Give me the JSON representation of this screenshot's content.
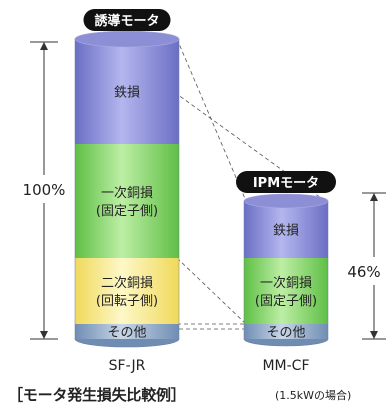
{
  "chart_data": {
    "type": "bar",
    "stacked": true,
    "categories": [
      "SF-JR",
      "MM-CF"
    ],
    "badges": [
      "誘導モータ",
      "IPMモータ"
    ],
    "series": [
      {
        "name": "その他",
        "values": [
          5,
          5
        ],
        "color": "#8aa6c8"
      },
      {
        "name": "二次銅損\n(回転子側)",
        "values": [
          22,
          0
        ],
        "color": "#f7ee8e"
      },
      {
        "name": "一次銅損\n(固定子側)",
        "values": [
          38,
          22
        ],
        "color": "#8ed36e"
      },
      {
        "name": "鉄損",
        "values": [
          35,
          19
        ],
        "color": "#8c8fd6"
      }
    ],
    "percent_labels": [
      "100%",
      "46%"
    ],
    "ylim": [
      0,
      100
    ]
  },
  "caption": {
    "main": "［モータ発生損失比較例］",
    "note": "(1.5kWの場合)"
  },
  "colors": {
    "badge": "#111111",
    "bar_edge": "#6a7f99",
    "dashed": "#555555"
  }
}
